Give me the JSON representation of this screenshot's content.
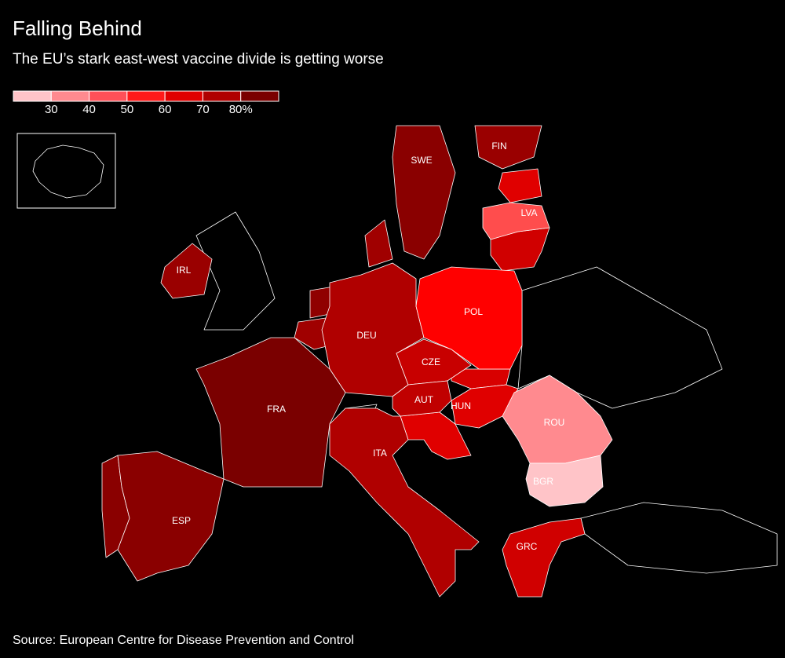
{
  "title": "Falling Behind",
  "subtitle": "The EU’s stark east-west vaccine divide is getting worse",
  "legend": {
    "colors": [
      "#ffc4c8",
      "#ff8a8f",
      "#ff5058",
      "#ff1a1a",
      "#e00000",
      "#b00000",
      "#7a0000"
    ],
    "ticks": [
      30,
      40,
      50,
      60,
      70,
      {
        "value": 80,
        "label": "80%"
      }
    ]
  },
  "countries": [
    {
      "label": "SWE",
      "color": "#8a0000"
    },
    {
      "label": "FIN",
      "color": "#9a0000"
    },
    {
      "label": "LVA",
      "color": "#ff4d4d"
    },
    {
      "label": "IRL",
      "color": "#9a0000"
    },
    {
      "label": "DEU",
      "color": "#b00000"
    },
    {
      "label": "POL",
      "color": "#ff0000"
    },
    {
      "label": "CZE",
      "color": "#c80000"
    },
    {
      "label": "FRA",
      "color": "#7a0000"
    },
    {
      "label": "AUT",
      "color": "#c00000"
    },
    {
      "label": "HUN",
      "color": "#e00000"
    },
    {
      "label": "ROU",
      "color": "#ff8a8f"
    },
    {
      "label": "BGR",
      "color": "#ffc4c8"
    },
    {
      "label": "ITA",
      "color": "#b00000"
    },
    {
      "label": "ESP",
      "color": "#8a0000"
    },
    {
      "label": "GRC",
      "color": "#d00000"
    }
  ],
  "source": "Source: European Centre for Disease Prevention and Control"
}
